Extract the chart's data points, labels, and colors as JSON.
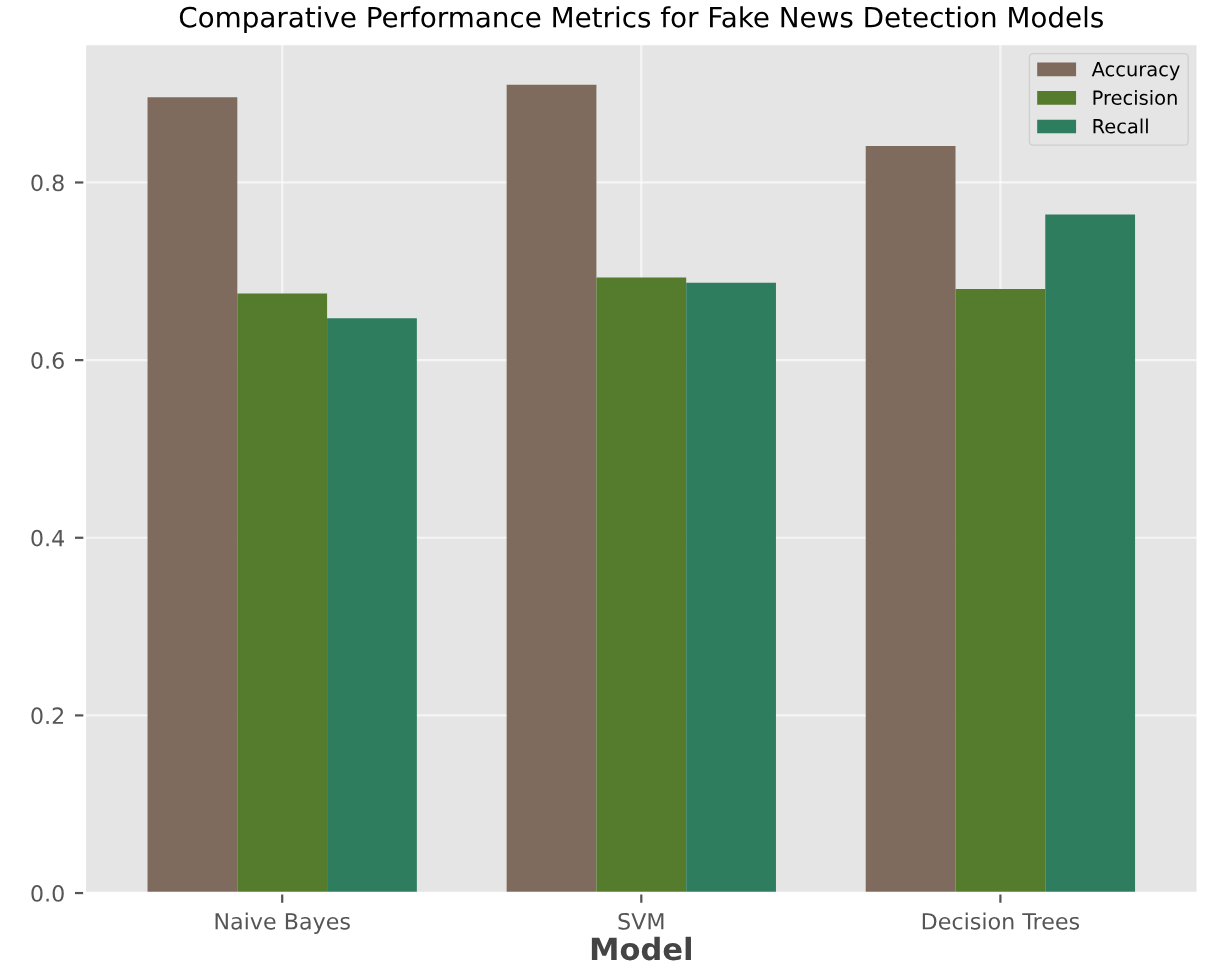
{
  "chart_data": {
    "type": "bar",
    "title": "Comparative Performance Metrics for Fake News Detection Models",
    "xlabel": "Model",
    "categories": [
      "Naive Bayes",
      "SVM",
      "Decision Trees"
    ],
    "series": [
      {
        "name": "Accuracy",
        "color": "#7f6b5d",
        "values": [
          0.896,
          0.91,
          0.841
        ]
      },
      {
        "name": "Precision",
        "color": "#557b2d",
        "values": [
          0.675,
          0.693,
          0.68
        ]
      },
      {
        "name": "Recall",
        "color": "#2e7d5e",
        "values": [
          0.647,
          0.687,
          0.764
        ]
      }
    ],
    "ylim": [
      0,
      0.956
    ],
    "yticks": [
      {
        "value": 0,
        "label": "0.0"
      },
      0.2,
      0.4,
      0.6,
      0.8
    ],
    "grid": true,
    "legend": "top right"
  }
}
